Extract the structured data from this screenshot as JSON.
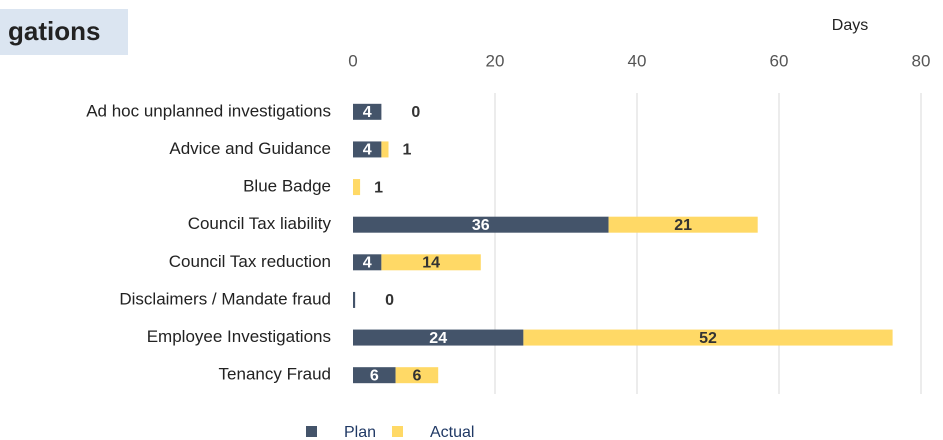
{
  "chart_data": {
    "type": "stacked-bar-horizontal",
    "title": "gations",
    "axis_label": "Days",
    "categories": [
      "Ad hoc unplanned investigations",
      "Advice and Guidance",
      "Blue Badge",
      "Council Tax liability",
      "Council Tax reduction",
      "Disclaimers / Mandate fraud",
      "Employee Investigations",
      "Tenancy Fraud"
    ],
    "series": [
      {
        "name": "Plan",
        "color": "#44546a",
        "values": [
          4,
          4,
          0,
          36,
          4,
          0.3,
          24,
          6
        ],
        "value_labels": [
          "4",
          "4",
          "0",
          "36",
          "4",
          null,
          "24",
          "6"
        ]
      },
      {
        "name": "Actual",
        "color": "#ffd966",
        "values": [
          0,
          1,
          1,
          21,
          14,
          0,
          52,
          6
        ]
      }
    ],
    "xlim": [
      0,
      80
    ],
    "xticks": [
      0,
      20,
      40,
      60,
      80
    ],
    "grid": true,
    "legend": "bottom"
  }
}
